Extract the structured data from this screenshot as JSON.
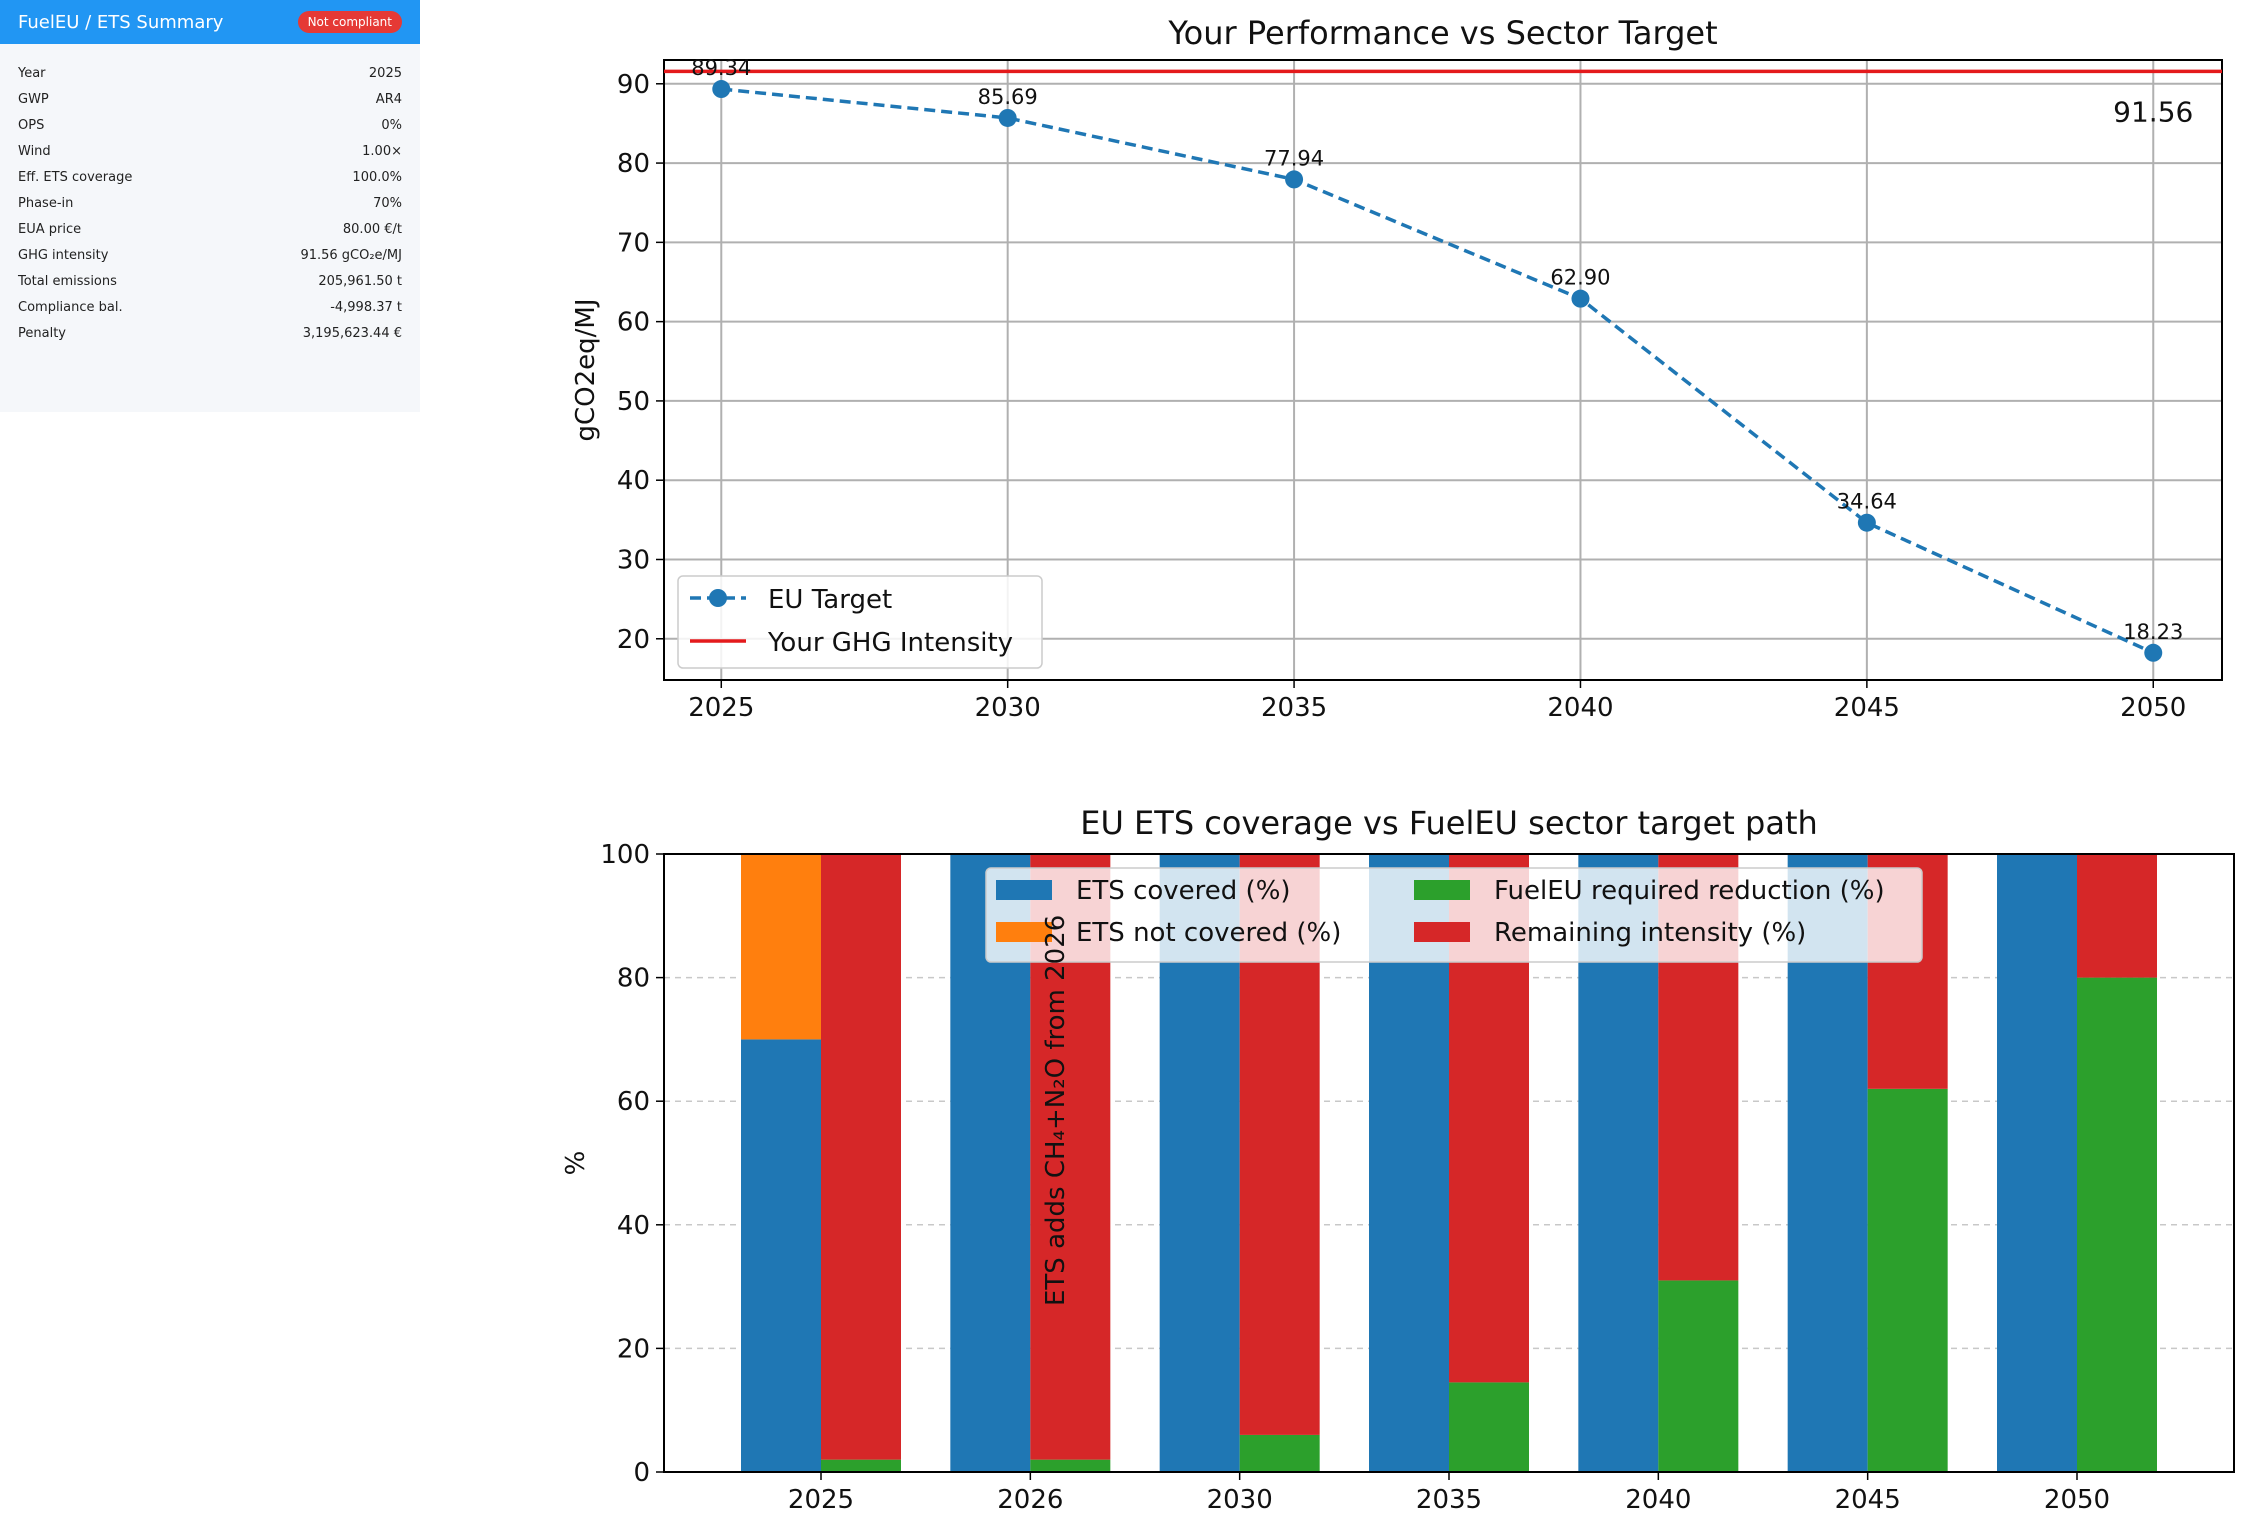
{
  "panel": {
    "title": "FuelEU / ETS Summary",
    "status_badge": "Not compliant",
    "status_color": "#e53935",
    "header_color": "#2196f3",
    "rows": [
      {
        "label": "Year",
        "value": "2025"
      },
      {
        "label": "GWP",
        "value": "AR4"
      },
      {
        "label": "OPS",
        "value": "0%"
      },
      {
        "label": "Wind",
        "value": "1.00×"
      },
      {
        "label": "Eff. ETS coverage",
        "value": "100.0%"
      },
      {
        "label": "Phase-in",
        "value": "70%"
      },
      {
        "label": "EUA price",
        "value": "80.00 €/t"
      },
      {
        "label": "GHG intensity",
        "value": "91.56 gCO₂e/MJ"
      },
      {
        "label": "Total emissions",
        "value": "205,961.50 t"
      },
      {
        "label": "Compliance bal.",
        "value": "-4,998.37 t"
      },
      {
        "label": "Penalty",
        "value": "3,195,623.44 €"
      }
    ]
  },
  "chart_data": [
    {
      "type": "line",
      "title": "Your Performance vs Sector Target",
      "xlabel": "",
      "ylabel": "gCO2eq/MJ",
      "x": [
        2025,
        2030,
        2035,
        2040,
        2045,
        2050
      ],
      "x_ticks": [
        "2025",
        "2030",
        "2035",
        "2040",
        "2045",
        "2050"
      ],
      "xlim": [
        2024,
        2051.2
      ],
      "ylim": [
        14.8,
        93
      ],
      "y_ticks": [
        "20",
        "30",
        "40",
        "50",
        "60",
        "70",
        "80",
        "90"
      ],
      "grid": true,
      "series": [
        {
          "name": "EU Target",
          "values": [
            89.34,
            85.69,
            77.94,
            62.9,
            34.64,
            18.23
          ],
          "labels": [
            "89.34",
            "85.69",
            "77.94",
            "62.90",
            "34.64",
            "18.23"
          ],
          "color": "#1f77b4",
          "style": "dashed-marker"
        }
      ],
      "hline": {
        "name": "Your GHG Intensity",
        "value": 91.56,
        "label": "91.56",
        "color": "#e41a1c"
      },
      "legend": [
        "EU Target",
        "Your GHG Intensity"
      ],
      "legend_position": "lower-left"
    },
    {
      "type": "bar",
      "title": "EU ETS coverage vs FuelEU sector target path",
      "ylabel": "%",
      "categories": [
        "2025",
        "2026",
        "2030",
        "2035",
        "2040",
        "2045",
        "2050"
      ],
      "ylim": [
        0,
        100
      ],
      "y_ticks": [
        "0",
        "20",
        "40",
        "60",
        "80",
        "100"
      ],
      "grid": "y-dashed",
      "stack_groups": [
        {
          "stack": "left",
          "series": [
            {
              "name": "ETS covered (%)",
              "color": "#1f77b4",
              "values": [
                70,
                100,
                100,
                100,
                100,
                100,
                100
              ]
            },
            {
              "name": "ETS not covered (%)",
              "color": "#ff7f0e",
              "values": [
                30,
                0,
                0,
                0,
                0,
                0,
                0
              ]
            }
          ]
        },
        {
          "stack": "right",
          "series": [
            {
              "name": "FuelEU required reduction (%)",
              "color": "#2ca02c",
              "values": [
                2,
                2,
                6,
                14.5,
                31,
                62,
                80
              ]
            },
            {
              "name": "Remaining intensity (%)",
              "color": "#d62728",
              "values": [
                98,
                98,
                94,
                85.5,
                69,
                38,
                20
              ]
            }
          ]
        }
      ],
      "legend": [
        "ETS covered (%)",
        "ETS not covered (%)",
        "FuelEU required reduction (%)",
        "Remaining intensity (%)"
      ],
      "legend_position": "top-center",
      "annotation": "ETS adds CH₄+N₂O from 2026"
    }
  ]
}
